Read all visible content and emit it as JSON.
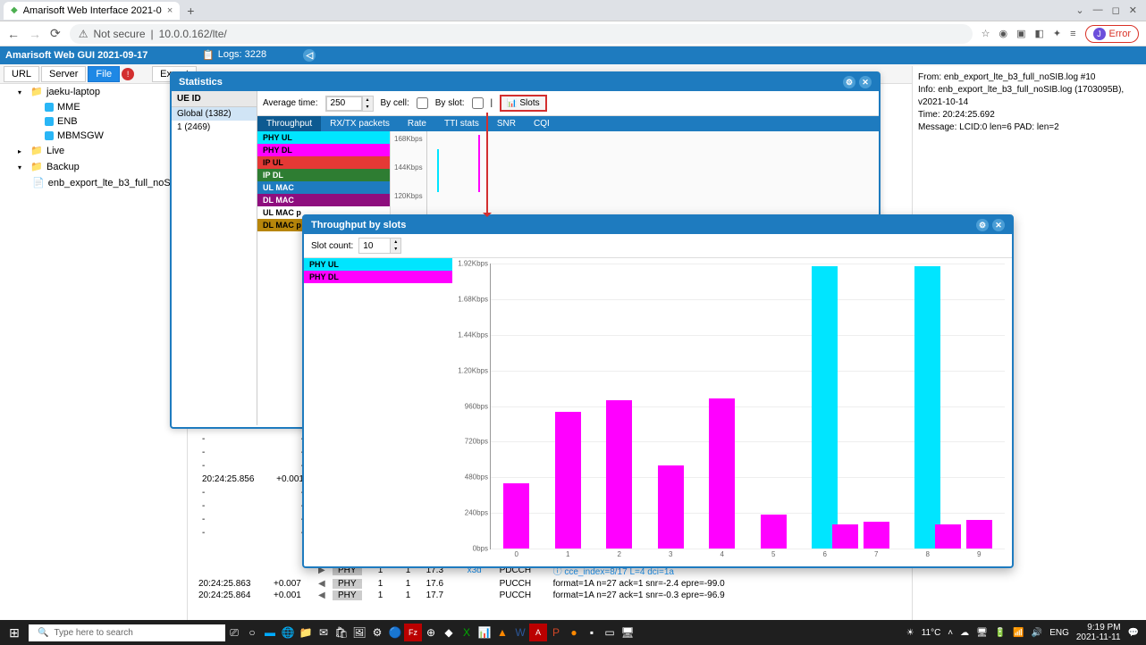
{
  "browser": {
    "tab_title": "Amarisoft Web Interface 2021-0",
    "url_prefix": "Not secure",
    "url": "10.0.0.162/lte/",
    "error_label": "Error"
  },
  "app": {
    "title": "Amarisoft Web GUI 2021-09-17",
    "logs_label": "Logs: 3228"
  },
  "toolbar": {
    "url": "URL",
    "server": "Server",
    "file": "File",
    "export": "Export",
    "alert": "!"
  },
  "sidebar": {
    "items": [
      {
        "label": "jaeku-laptop",
        "indent": 1,
        "icon": "folder",
        "exp": "▾"
      },
      {
        "label": "MME",
        "indent": 2,
        "icon": "server"
      },
      {
        "label": "ENB",
        "indent": 2,
        "icon": "server"
      },
      {
        "label": "MBMSGW",
        "indent": 2,
        "icon": "server"
      },
      {
        "label": "Live",
        "indent": 1,
        "icon": "folder",
        "exp": "▸"
      },
      {
        "label": "Backup",
        "indent": 1,
        "icon": "folder",
        "exp": "▾"
      },
      {
        "label": "enb_export_lte_b3_full_noSIB.log",
        "indent": 2,
        "icon": "file",
        "dot": true
      }
    ]
  },
  "stats": {
    "title": "Statistics",
    "ue_header": "UE ID",
    "ue_items": [
      "Global (1382)",
      "1 (2469)"
    ],
    "avg_time_label": "Average time:",
    "avg_time_value": "250",
    "by_cell": "By cell:",
    "by_slot": "By slot:",
    "slots_btn": "Slots",
    "tabs": [
      "Throughput",
      "RX/TX packets",
      "Rate",
      "TTI stats",
      "SNR",
      "CQI"
    ],
    "active_tab": 0,
    "legend": [
      {
        "label": "PHY UL",
        "bg": "#00e5ff",
        "fg": "#000"
      },
      {
        "label": "PHY DL",
        "bg": "#ff00ff",
        "fg": "#000"
      },
      {
        "label": "IP UL",
        "bg": "#e53935",
        "fg": "#000"
      },
      {
        "label": "IP DL",
        "bg": "#2e7d32",
        "fg": "#fff"
      },
      {
        "label": "UL MAC",
        "bg": "#1e7bbf",
        "fg": "#fff"
      },
      {
        "label": "DL MAC",
        "bg": "#8e0e7e",
        "fg": "#fff"
      },
      {
        "label": "UL MAC p",
        "bg": "#ffffff",
        "fg": "#000"
      },
      {
        "label": "DL MAC p",
        "bg": "#b8860b",
        "fg": "#000"
      }
    ],
    "yticks": [
      "168Kbps",
      "144Kbps",
      "120Kbps"
    ]
  },
  "slots": {
    "title": "Throughput by slots",
    "count_label": "Slot count:",
    "count_value": "10",
    "legend": [
      {
        "label": "PHY UL",
        "bg": "#00e5ff"
      },
      {
        "label": "PHY DL",
        "bg": "#ff00ff"
      }
    ],
    "chart": {
      "ylim": 1.92,
      "yticks": [
        "1.92Kbps",
        "1.68Kbps",
        "1.44Kbps",
        "1.20Kbps",
        "960bps",
        "720bps",
        "480bps",
        "240bps",
        "0bps"
      ],
      "xticks": [
        "0",
        "1",
        "2",
        "3",
        "4",
        "5",
        "6",
        "7",
        "8",
        "9"
      ],
      "bars": [
        {
          "x": 0,
          "v": 0.44,
          "c": "#ff00ff"
        },
        {
          "x": 1,
          "v": 0.92,
          "c": "#ff00ff"
        },
        {
          "x": 2,
          "v": 1.0,
          "c": "#ff00ff"
        },
        {
          "x": 3,
          "v": 0.56,
          "c": "#ff00ff"
        },
        {
          "x": 4,
          "v": 1.01,
          "c": "#ff00ff"
        },
        {
          "x": 5,
          "v": 0.23,
          "c": "#ff00ff"
        },
        {
          "x": 6,
          "v": 1.9,
          "c": "#00e5ff"
        },
        {
          "x": 6,
          "v": 0.16,
          "c": "#ff00ff",
          "offset": true
        },
        {
          "x": 7,
          "v": 0.18,
          "c": "#ff00ff"
        },
        {
          "x": 8,
          "v": 1.9,
          "c": "#00e5ff"
        },
        {
          "x": 8,
          "v": 0.16,
          "c": "#ff00ff",
          "offset": true
        },
        {
          "x": 9,
          "v": 0.19,
          "c": "#ff00ff"
        }
      ],
      "bar_width_pct": 5
    }
  },
  "info": {
    "lines": [
      "From: enb_export_lte_b3_full_noSIB.log #10",
      "Info: enb_export_lte_b3_full_noSIB.log (1703095B), v2021-10-14",
      "Time: 20:24:25.692",
      "Message: LCID:0 len=6 PAD: len=2"
    ]
  },
  "mid": {
    "rows": [
      {
        "t": "-",
        "d": "-"
      },
      {
        "t": "-",
        "d": "-"
      },
      {
        "t": "-",
        "d": "-"
      },
      {
        "t": "20:24:25.856",
        "d": "+0.001"
      },
      {
        "t": "-",
        "d": "-"
      },
      {
        "t": "-",
        "d": "-"
      },
      {
        "t": "-",
        "d": "-"
      },
      {
        "t": "-",
        "d": "-"
      }
    ]
  },
  "logs": {
    "rows": [
      {
        "t": "",
        "d": "",
        "dir": "▶",
        "layer": "PHY",
        "a": "1",
        "b": "1",
        "c": "17.3",
        "ex": "x3d",
        "ch": "PDCCH",
        "msg": "ⓘ cce_index=8/17 L=4 dci=1a",
        "info": true
      },
      {
        "t": "20:24:25.863",
        "d": "+0.007",
        "dir": "◀",
        "layer": "PHY",
        "a": "1",
        "b": "1",
        "c": "17.6",
        "ex": "",
        "ch": "PUCCH",
        "msg": "format=1A n=27 ack=1 snr=-2.4 epre=-99.0"
      },
      {
        "t": "20:24:25.864",
        "d": "+0.001",
        "dir": "◀",
        "layer": "PHY",
        "a": "1",
        "b": "1",
        "c": "17.7",
        "ex": "",
        "ch": "PUCCH",
        "msg": "format=1A n=27 ack=1 snr=-0.3 epre=-96.9"
      }
    ]
  },
  "taskbar": {
    "search_placeholder": "Type here to search",
    "weather": "11°C",
    "lang": "ENG",
    "time": "9:19 PM",
    "date": "2021-11-11"
  }
}
